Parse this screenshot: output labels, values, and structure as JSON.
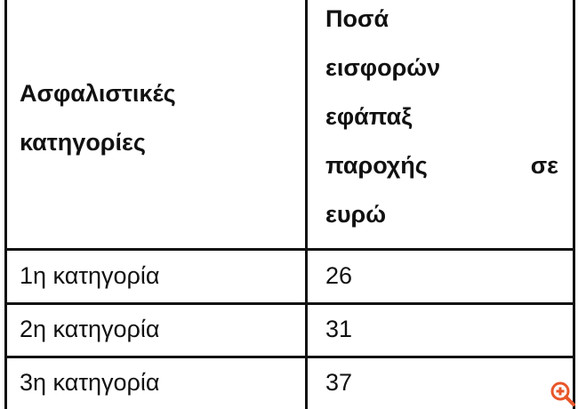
{
  "table": {
    "headers": {
      "category": [
        "Ασφαλιστικές",
        "κατηγορίες"
      ],
      "amount": [
        "Ποσά",
        "εισφορών",
        "εφάπαξ",
        [
          "παροχής",
          "σε"
        ],
        "ευρώ"
      ]
    },
    "rows": [
      {
        "category": "1η κατηγορία",
        "amount": "26"
      },
      {
        "category": "2η κατηγορία",
        "amount": "31"
      },
      {
        "category": "3η κατηγορία",
        "amount": "37"
      }
    ]
  },
  "icons": {
    "zoom": "zoom-in-icon"
  },
  "colors": {
    "zoom_icon": "#e8562a",
    "border": "#111111"
  }
}
